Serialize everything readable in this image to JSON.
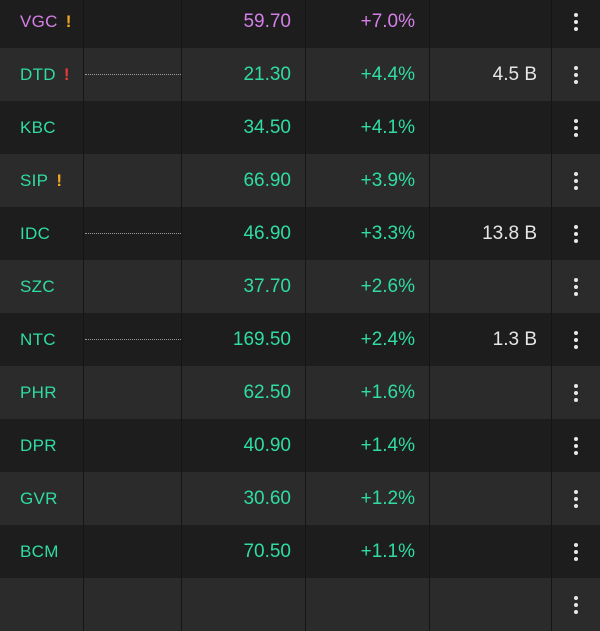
{
  "colors": {
    "up": "#2fdca4",
    "ceiling": "#d47fe8",
    "warn_orange": "#f5a623",
    "warn_red": "#e83a3a"
  },
  "rows": [
    {
      "symbol": "VGC",
      "warning": "!",
      "warning_color": "orange",
      "sparkline": false,
      "price": "59.70",
      "change": "+7.0%",
      "volume": "",
      "color": "ceiling"
    },
    {
      "symbol": "DTD",
      "warning": "!",
      "warning_color": "red",
      "sparkline": true,
      "price": "21.30",
      "change": "+4.4%",
      "volume": "4.5 B",
      "color": "up"
    },
    {
      "symbol": "KBC",
      "warning": "",
      "warning_color": "",
      "sparkline": false,
      "price": "34.50",
      "change": "+4.1%",
      "volume": "",
      "color": "up"
    },
    {
      "symbol": "SIP",
      "warning": "!",
      "warning_color": "orange",
      "sparkline": false,
      "price": "66.90",
      "change": "+3.9%",
      "volume": "",
      "color": "up"
    },
    {
      "symbol": "IDC",
      "warning": "",
      "warning_color": "",
      "sparkline": true,
      "price": "46.90",
      "change": "+3.3%",
      "volume": "13.8 B",
      "color": "up"
    },
    {
      "symbol": "SZC",
      "warning": "",
      "warning_color": "",
      "sparkline": false,
      "price": "37.70",
      "change": "+2.6%",
      "volume": "",
      "color": "up"
    },
    {
      "symbol": "NTC",
      "warning": "",
      "warning_color": "",
      "sparkline": true,
      "price": "169.50",
      "change": "+2.4%",
      "volume": "1.3 B",
      "color": "up"
    },
    {
      "symbol": "PHR",
      "warning": "",
      "warning_color": "",
      "sparkline": false,
      "price": "62.50",
      "change": "+1.6%",
      "volume": "",
      "color": "up"
    },
    {
      "symbol": "DPR",
      "warning": "",
      "warning_color": "",
      "sparkline": false,
      "price": "40.90",
      "change": "+1.4%",
      "volume": "",
      "color": "up"
    },
    {
      "symbol": "GVR",
      "warning": "",
      "warning_color": "",
      "sparkline": false,
      "price": "30.60",
      "change": "+1.2%",
      "volume": "",
      "color": "up"
    },
    {
      "symbol": "BCM",
      "warning": "",
      "warning_color": "",
      "sparkline": false,
      "price": "70.50",
      "change": "+1.1%",
      "volume": "",
      "color": "up"
    },
    {
      "symbol": "",
      "warning": "",
      "warning_color": "",
      "sparkline": false,
      "price": "",
      "change": "",
      "volume": "",
      "color": "up"
    }
  ]
}
